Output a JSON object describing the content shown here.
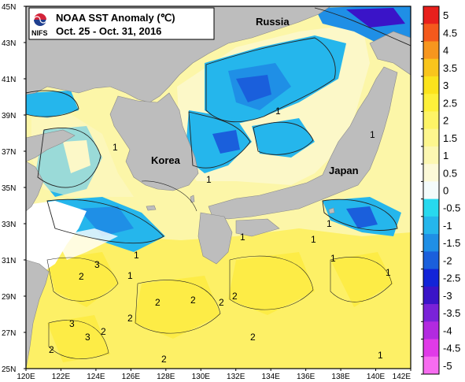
{
  "title": {
    "agency": "NIFS",
    "line1": "NOAA SST Anomaly (℃)",
    "line2": "Oct. 25 - Oct. 31, 2016"
  },
  "places": [
    {
      "key": "russia",
      "label": "Russia"
    },
    {
      "key": "korea",
      "label": "Korea"
    },
    {
      "key": "japan",
      "label": "Japan"
    }
  ],
  "map": {
    "lon_range": [
      120,
      142
    ],
    "lat_range": [
      25,
      45
    ],
    "lon_ticks": [
      "120E",
      "122E",
      "124E",
      "126E",
      "128E",
      "130E",
      "132E",
      "134E",
      "136E",
      "138E",
      "140E",
      "142E"
    ],
    "lat_ticks": [
      "45N",
      "43N",
      "41N",
      "39N",
      "37N",
      "35N",
      "33N",
      "31N",
      "29N",
      "27N",
      "25N"
    ]
  },
  "colorbar": {
    "levels": [
      {
        "label": "5",
        "color": "#e8201c"
      },
      {
        "label": "4.5",
        "color": "#f4591c"
      },
      {
        "label": "4",
        "color": "#f7961e"
      },
      {
        "label": "3.5",
        "color": "#f9c51c"
      },
      {
        "label": "3",
        "color": "#fbe31c"
      },
      {
        "label": "2.5",
        "color": "#fdf03a"
      },
      {
        "label": "2",
        "color": "#fdf466"
      },
      {
        "label": "1.5",
        "color": "#fdf68e"
      },
      {
        "label": "1",
        "color": "#fcf7b2"
      },
      {
        "label": "0.5",
        "color": "#fcf9d8"
      },
      {
        "label": "0",
        "color": "#f4fbfb"
      },
      {
        "label": "-0.5",
        "color": "#27d9ef"
      },
      {
        "label": "-1",
        "color": "#25b6ec"
      },
      {
        "label": "-1.5",
        "color": "#1f8fe6"
      },
      {
        "label": "-2",
        "color": "#1a5fdc"
      },
      {
        "label": "-2.5",
        "color": "#1224d8"
      },
      {
        "label": "-3",
        "color": "#3a14c8"
      },
      {
        "label": "-3.5",
        "color": "#7a22d8"
      },
      {
        "label": "-4",
        "color": "#b22ae0"
      },
      {
        "label": "-4.5",
        "color": "#e03ae8"
      },
      {
        "label": "-5",
        "color": "#f76cf0"
      }
    ]
  },
  "contour_labels": [
    "1",
    "1",
    "1",
    "1",
    "1",
    "2",
    "2",
    "2",
    "2",
    "2",
    "2",
    "2",
    "2",
    "2",
    "3",
    "3",
    "3",
    "2",
    "1",
    "1",
    "1",
    "1",
    "1",
    "1",
    "1"
  ],
  "colors": {
    "land": "#bdbdbd",
    "warm_sea": "#fcf7b4",
    "warmer_sea": "#fdf466",
    "cool_sea": "#25b6ec",
    "cold_sea": "#1a5fdc",
    "no_data": "#ffffff",
    "logo_red": "#d4243a",
    "logo_blue": "#1f3f8f"
  }
}
